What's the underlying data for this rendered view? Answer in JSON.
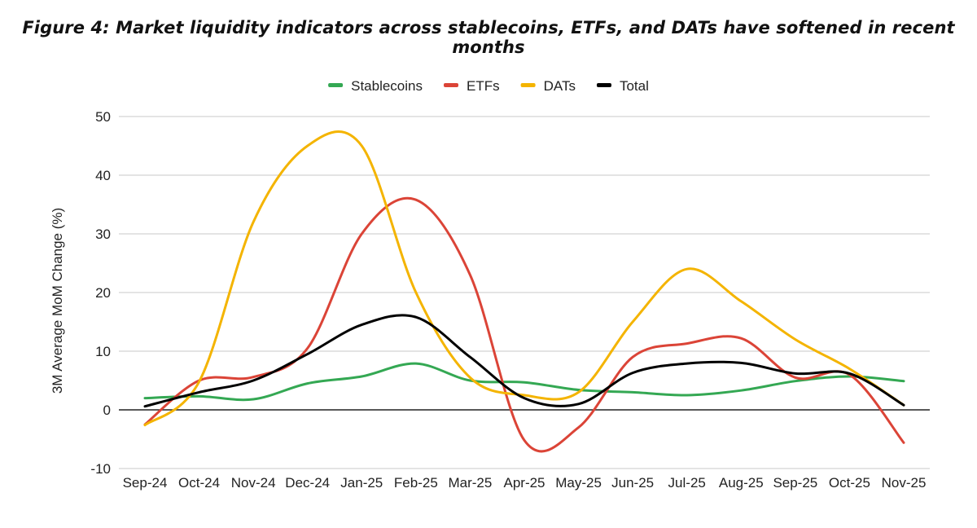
{
  "chart_data": {
    "type": "line",
    "title": "Figure 4: Market liquidity indicators across stablecoins, ETFs, and DATs have softened in recent months",
    "xlabel": "",
    "ylabel": "3M Average MoM Change (%)",
    "ylim": [
      -10,
      50
    ],
    "yticks": [
      -10,
      0,
      10,
      20,
      30,
      40,
      50
    ],
    "grid": true,
    "legend_position": "top-center",
    "categories": [
      "Sep-24",
      "Oct-24",
      "Nov-24",
      "Dec-24",
      "Jan-25",
      "Feb-25",
      "Mar-25",
      "Apr-25",
      "May-25",
      "Jun-25",
      "Jul-25",
      "Aug-25",
      "Sep-25",
      "Oct-25",
      "Nov-25"
    ],
    "series": [
      {
        "name": "Stablecoins",
        "color": "#34a853",
        "values": [
          2.0,
          2.3,
          1.8,
          4.5,
          5.7,
          7.9,
          5.0,
          4.7,
          3.4,
          3.0,
          2.5,
          3.3,
          4.9,
          5.7,
          4.9
        ]
      },
      {
        "name": "ETFs",
        "color": "#db4437",
        "values": [
          -2.5,
          5.0,
          5.6,
          10.5,
          30.0,
          35.8,
          23.0,
          -5.2,
          -3.0,
          9.0,
          11.3,
          12.2,
          5.5,
          6.0,
          -5.6
        ]
      },
      {
        "name": "DATs",
        "color": "#f4b400",
        "values": [
          -2.6,
          4.8,
          32.0,
          45.0,
          45.0,
          20.0,
          5.5,
          2.5,
          3.0,
          15.0,
          24.0,
          18.5,
          12.0,
          7.0,
          0.8
        ]
      },
      {
        "name": "Total",
        "color": "#000000",
        "values": [
          0.6,
          3.0,
          5.0,
          9.5,
          14.5,
          15.8,
          9.0,
          2.0,
          1.0,
          6.3,
          7.9,
          8.0,
          6.2,
          6.2,
          0.8
        ]
      }
    ]
  }
}
